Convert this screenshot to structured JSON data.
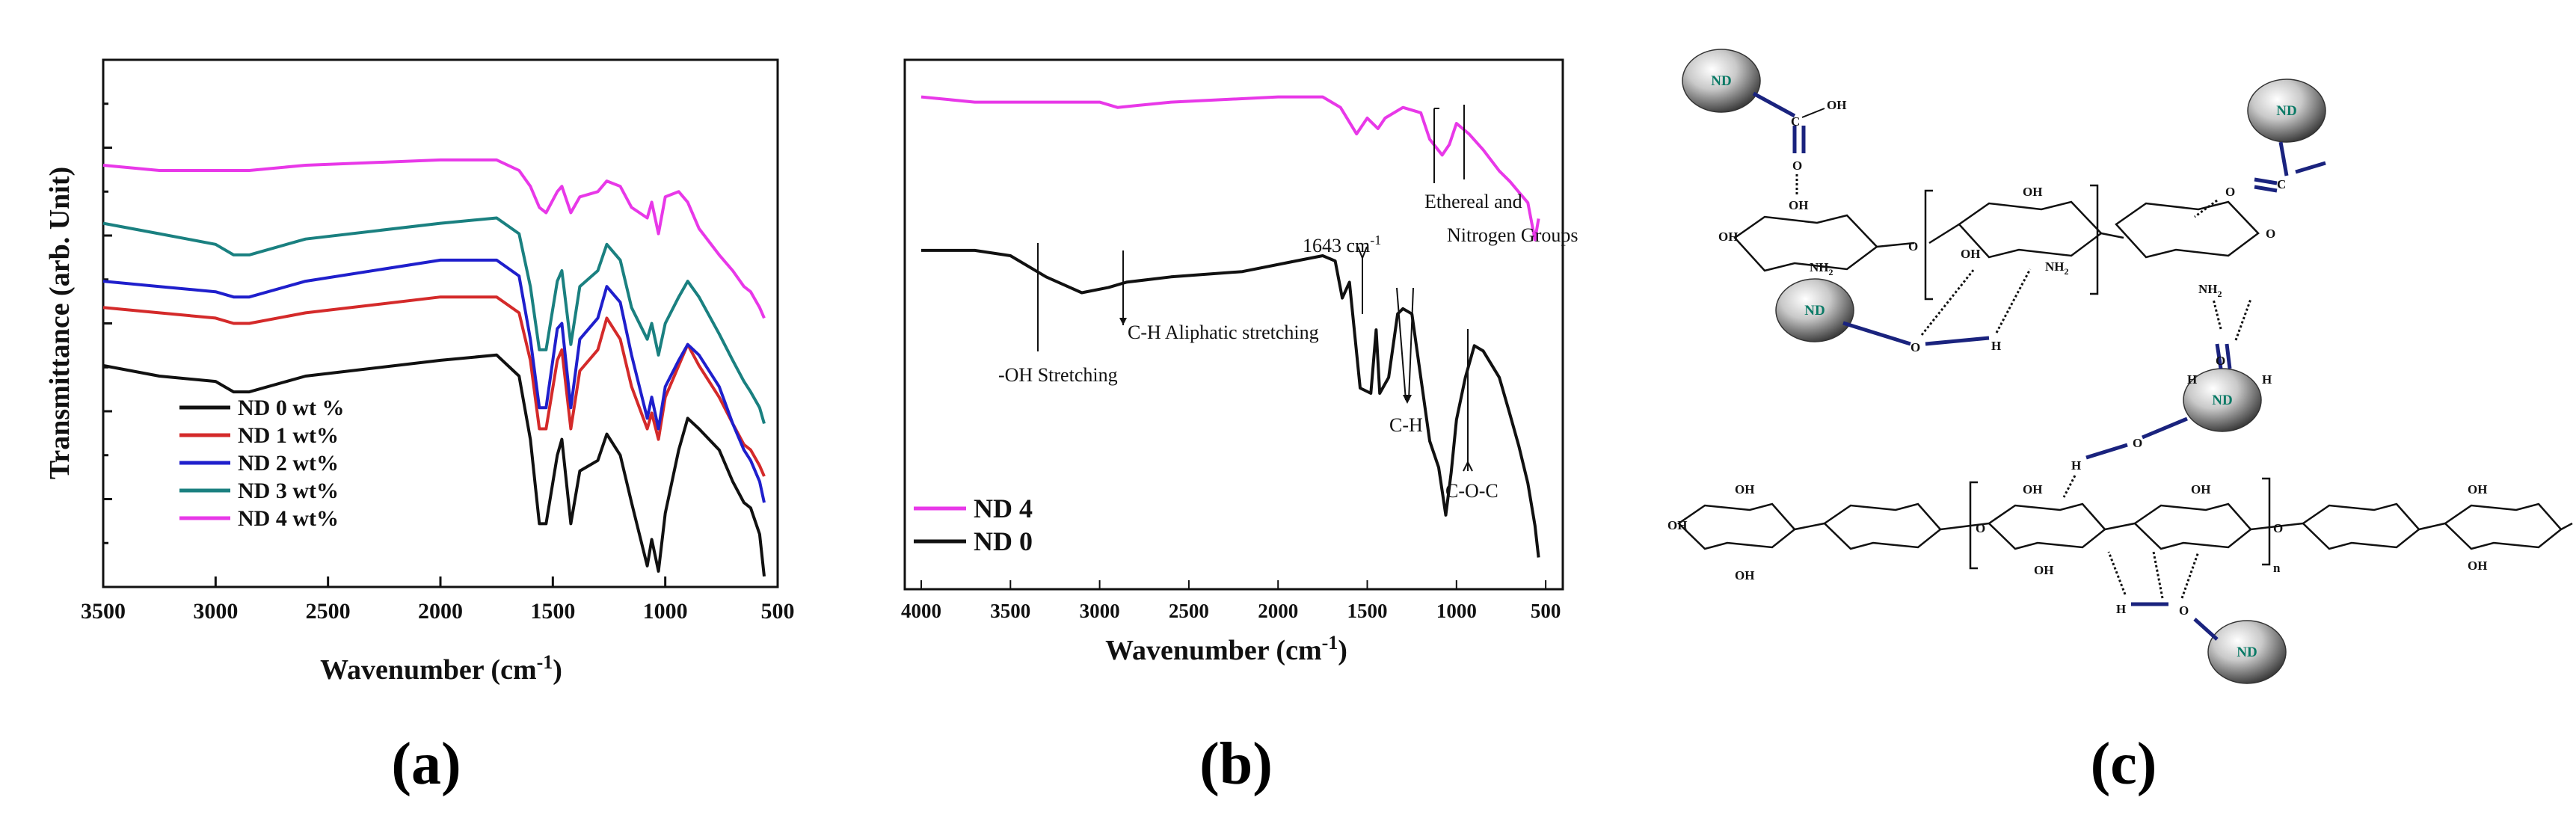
{
  "figure_labels": {
    "a": "(a)",
    "b": "(b)",
    "c": "(c)"
  },
  "colors": {
    "nd0": "#111111",
    "nd1": "#d42a2a",
    "nd2": "#1f1fcc",
    "nd3": "#1a8080",
    "nd4": "#e838e8",
    "bond": "#1a237e",
    "nd_text": "#0a7a66"
  },
  "chart_data": [
    {
      "type": "line",
      "panel": "a",
      "xlabel": "Wavenumber (cm-1)",
      "ylabel": "Transmittance (arb. Unit)",
      "xlim": [
        3500,
        500
      ],
      "ylim": [
        0,
        100
      ],
      "x_ticks": [
        "3500",
        "3000",
        "2500",
        "2000",
        "1500",
        "1000",
        "500"
      ],
      "legend_position": "lower-left",
      "series": [
        {
          "name": "ND 0 wt %",
          "color": "#111111",
          "points": [
            [
              3500,
              42
            ],
            [
              3250,
              40
            ],
            [
              3000,
              39
            ],
            [
              2920,
              37
            ],
            [
              2850,
              37
            ],
            [
              2600,
              40
            ],
            [
              2000,
              43
            ],
            [
              1750,
              44
            ],
            [
              1650,
              40
            ],
            [
              1600,
              28
            ],
            [
              1560,
              12
            ],
            [
              1530,
              12
            ],
            [
              1480,
              25
            ],
            [
              1460,
              28
            ],
            [
              1420,
              12
            ],
            [
              1380,
              22
            ],
            [
              1300,
              24
            ],
            [
              1260,
              29
            ],
            [
              1200,
              25
            ],
            [
              1150,
              16
            ],
            [
              1080,
              4
            ],
            [
              1060,
              9
            ],
            [
              1030,
              3
            ],
            [
              1000,
              14
            ],
            [
              940,
              26
            ],
            [
              900,
              32
            ],
            [
              850,
              30
            ],
            [
              760,
              26
            ],
            [
              700,
              20
            ],
            [
              650,
              16
            ],
            [
              620,
              15
            ],
            [
              580,
              10
            ],
            [
              560,
              2
            ]
          ]
        },
        {
          "name": "ND 1 wt%",
          "color": "#d42a2a",
          "points": [
            [
              3500,
              53
            ],
            [
              3250,
              52
            ],
            [
              3000,
              51
            ],
            [
              2920,
              50
            ],
            [
              2850,
              50
            ],
            [
              2600,
              52
            ],
            [
              2000,
              55
            ],
            [
              1750,
              55
            ],
            [
              1650,
              52
            ],
            [
              1600,
              43
            ],
            [
              1560,
              30
            ],
            [
              1530,
              30
            ],
            [
              1480,
              43
            ],
            [
              1460,
              45
            ],
            [
              1420,
              30
            ],
            [
              1380,
              41
            ],
            [
              1300,
              45
            ],
            [
              1260,
              51
            ],
            [
              1200,
              47
            ],
            [
              1150,
              38
            ],
            [
              1080,
              30
            ],
            [
              1060,
              33
            ],
            [
              1030,
              28
            ],
            [
              1000,
              36
            ],
            [
              940,
              42
            ],
            [
              900,
              46
            ],
            [
              850,
              42
            ],
            [
              760,
              36
            ],
            [
              700,
              31
            ],
            [
              650,
              27
            ],
            [
              620,
              26
            ],
            [
              580,
              23
            ],
            [
              560,
              21
            ]
          ]
        },
        {
          "name": "ND 2 wt%",
          "color": "#1f1fcc",
          "points": [
            [
              3500,
              58
            ],
            [
              3250,
              57
            ],
            [
              3000,
              56
            ],
            [
              2920,
              55
            ],
            [
              2850,
              55
            ],
            [
              2600,
              58
            ],
            [
              2000,
              62
            ],
            [
              1750,
              62
            ],
            [
              1650,
              59
            ],
            [
              1600,
              47
            ],
            [
              1560,
              34
            ],
            [
              1530,
              34
            ],
            [
              1480,
              49
            ],
            [
              1460,
              50
            ],
            [
              1420,
              34
            ],
            [
              1380,
              47
            ],
            [
              1300,
              51
            ],
            [
              1260,
              57
            ],
            [
              1200,
              54
            ],
            [
              1150,
              44
            ],
            [
              1080,
              32
            ],
            [
              1060,
              36
            ],
            [
              1030,
              30
            ],
            [
              1000,
              38
            ],
            [
              940,
              43
            ],
            [
              900,
              46
            ],
            [
              850,
              44
            ],
            [
              760,
              38
            ],
            [
              700,
              31
            ],
            [
              650,
              26
            ],
            [
              620,
              24
            ],
            [
              580,
              20
            ],
            [
              560,
              16
            ]
          ]
        },
        {
          "name": "ND 3 wt%",
          "color": "#1a8080",
          "points": [
            [
              3500,
              69
            ],
            [
              3250,
              67
            ],
            [
              3000,
              65
            ],
            [
              2920,
              63
            ],
            [
              2850,
              63
            ],
            [
              2600,
              66
            ],
            [
              2000,
              69
            ],
            [
              1750,
              70
            ],
            [
              1650,
              67
            ],
            [
              1600,
              57
            ],
            [
              1560,
              45
            ],
            [
              1530,
              45
            ],
            [
              1480,
              58
            ],
            [
              1460,
              60
            ],
            [
              1420,
              46
            ],
            [
              1380,
              57
            ],
            [
              1300,
              60
            ],
            [
              1260,
              65
            ],
            [
              1200,
              62
            ],
            [
              1150,
              53
            ],
            [
              1080,
              47
            ],
            [
              1060,
              50
            ],
            [
              1030,
              44
            ],
            [
              1000,
              50
            ],
            [
              940,
              55
            ],
            [
              900,
              58
            ],
            [
              850,
              55
            ],
            [
              760,
              48
            ],
            [
              700,
              43
            ],
            [
              650,
              39
            ],
            [
              620,
              37
            ],
            [
              580,
              34
            ],
            [
              560,
              31
            ]
          ]
        },
        {
          "name": "ND 4 wt%",
          "color": "#e838e8",
          "points": [
            [
              3500,
              80
            ],
            [
              3250,
              79
            ],
            [
              3000,
              79
            ],
            [
              2920,
              79
            ],
            [
              2850,
              79
            ],
            [
              2600,
              80
            ],
            [
              2000,
              81
            ],
            [
              1750,
              81
            ],
            [
              1650,
              79
            ],
            [
              1600,
              76
            ],
            [
              1560,
              72
            ],
            [
              1530,
              71
            ],
            [
              1480,
              75
            ],
            [
              1460,
              76
            ],
            [
              1420,
              71
            ],
            [
              1380,
              74
            ],
            [
              1300,
              75
            ],
            [
              1260,
              77
            ],
            [
              1200,
              76
            ],
            [
              1150,
              72
            ],
            [
              1080,
              70
            ],
            [
              1060,
              73
            ],
            [
              1030,
              67
            ],
            [
              1000,
              74
            ],
            [
              940,
              75
            ],
            [
              900,
              73
            ],
            [
              850,
              68
            ],
            [
              760,
              63
            ],
            [
              700,
              60
            ],
            [
              650,
              57
            ],
            [
              620,
              56
            ],
            [
              580,
              53
            ],
            [
              560,
              51
            ]
          ]
        }
      ]
    },
    {
      "type": "line",
      "panel": "b",
      "xlabel": "Wavenumber (cm-1)",
      "ylabel": "",
      "xlim": [
        4000,
        500
      ],
      "ylim": [
        0,
        100
      ],
      "x_ticks": [
        "4000",
        "3500",
        "3000",
        "2500",
        "2000",
        "1500",
        "1000",
        "500"
      ],
      "legend_position": "lower-left",
      "series": [
        {
          "name": "ND 4",
          "color": "#e838e8",
          "points": [
            [
              4000,
              93
            ],
            [
              3700,
              92
            ],
            [
              3400,
              92
            ],
            [
              3000,
              92
            ],
            [
              2900,
              91
            ],
            [
              2600,
              92
            ],
            [
              2000,
              93
            ],
            [
              1750,
              93
            ],
            [
              1650,
              91
            ],
            [
              1560,
              86
            ],
            [
              1500,
              89
            ],
            [
              1440,
              87
            ],
            [
              1400,
              89
            ],
            [
              1300,
              91
            ],
            [
              1200,
              90
            ],
            [
              1150,
              85
            ],
            [
              1080,
              82
            ],
            [
              1040,
              84
            ],
            [
              1000,
              88
            ],
            [
              930,
              86
            ],
            [
              850,
              83
            ],
            [
              760,
              79
            ],
            [
              700,
              77
            ],
            [
              650,
              75
            ],
            [
              600,
              73
            ],
            [
              560,
              66
            ],
            [
              540,
              70
            ]
          ]
        },
        {
          "name": "ND 0",
          "color": "#111111",
          "points": [
            [
              4000,
              64
            ],
            [
              3700,
              64
            ],
            [
              3500,
              63
            ],
            [
              3300,
              59
            ],
            [
              3100,
              56
            ],
            [
              2950,
              57
            ],
            [
              2850,
              58
            ],
            [
              2600,
              59
            ],
            [
              2200,
              60
            ],
            [
              1900,
              62
            ],
            [
              1750,
              63
            ],
            [
              1680,
              62
            ],
            [
              1640,
              55
            ],
            [
              1600,
              58
            ],
            [
              1540,
              38
            ],
            [
              1480,
              37
            ],
            [
              1450,
              49
            ],
            [
              1430,
              37
            ],
            [
              1380,
              40
            ],
            [
              1330,
              52
            ],
            [
              1300,
              53
            ],
            [
              1250,
              52
            ],
            [
              1200,
              40
            ],
            [
              1150,
              28
            ],
            [
              1100,
              23
            ],
            [
              1060,
              14
            ],
            [
              1030,
              22
            ],
            [
              1000,
              32
            ],
            [
              950,
              40
            ],
            [
              900,
              46
            ],
            [
              850,
              45
            ],
            [
              760,
              40
            ],
            [
              700,
              33
            ],
            [
              650,
              27
            ],
            [
              600,
              20
            ],
            [
              560,
              12
            ],
            [
              540,
              6
            ]
          ]
        }
      ],
      "annotations": [
        "1643 cm-1",
        "Ethereal and",
        "Nitrogen  Groups",
        "C-H Aliphatic stretching",
        "-OH Stretching",
        "C-H",
        "C-O-C"
      ]
    }
  ],
  "panel_a": {
    "ylabel": "Transmittance (arb. Unit)",
    "xlabel_text": "Wavenumber (cm",
    "xlabel_sup": "-1",
    "xlabel_close": ")",
    "ticks": [
      "3500",
      "3000",
      "2500",
      "2000",
      "1500",
      "1000",
      "500"
    ],
    "legend": [
      "ND 0 wt %",
      "ND 1 wt%",
      "ND 2 wt%",
      "ND 3 wt%",
      "ND 4 wt%"
    ]
  },
  "panel_b": {
    "xlabel_text": "Wavenumber (cm",
    "xlabel_sup": "-1",
    "xlabel_close": ")",
    "ticks": [
      "4000",
      "3500",
      "3000",
      "2500",
      "2000",
      "1500",
      "1000",
      "500"
    ],
    "legend": [
      "ND 4",
      "ND 0"
    ],
    "anno_1643": "1643 cm",
    "anno_1643_sup": "-1",
    "anno_ethereal": "Ethereal and",
    "anno_nitrogen": "Nitrogen  Groups",
    "anno_ch_aliph": "C-H Aliphatic stretching",
    "anno_oh": "-OH Stretching",
    "anno_ch": "C-H",
    "anno_coc": "C-O-C"
  },
  "panel_c": {
    "nd": "ND",
    "labels": {
      "c": "C",
      "oh": "OH",
      "o": "O",
      "h": "H",
      "hh": "H",
      "nh2": "NH",
      "nh2_sub": "2",
      "n": "n",
      "ohsmall": "OH",
      "o_plain": "O"
    }
  }
}
